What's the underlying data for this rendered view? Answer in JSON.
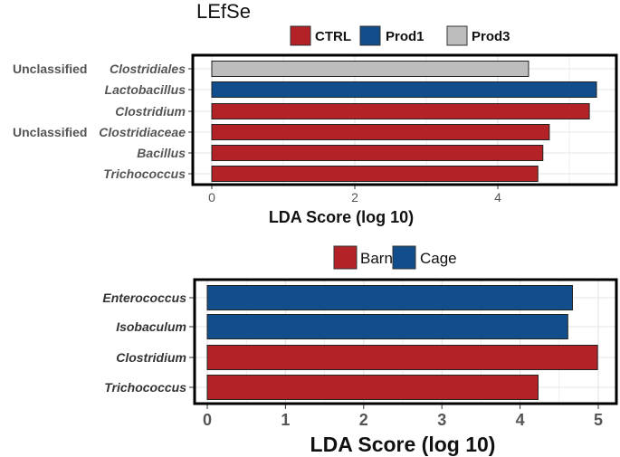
{
  "colors": {
    "CTRL": "#b22226",
    "Prod1": "#124e8c",
    "Prod3": "#bdbdbd",
    "Barn": "#b22226",
    "Cage": "#124e8c"
  },
  "chart_data": [
    {
      "type": "bar",
      "orientation": "horizontal",
      "title": "LEfSe",
      "legend_position": "top",
      "legend": [
        "CTRL",
        "Prod1",
        "Prod3"
      ],
      "xlabel": "LDA Score (log 10)",
      "xlim": [
        0,
        5.4
      ],
      "xticks": [
        "0",
        "2",
        "4"
      ],
      "grid": true,
      "bars": [
        {
          "prefix": "Unclassified",
          "label": "Clostridiales",
          "value": 4.43,
          "group": "Prod3"
        },
        {
          "prefix": "",
          "label": "Lactobacillus",
          "value": 5.38,
          "group": "Prod1"
        },
        {
          "prefix": "",
          "label": "Clostridium",
          "value": 5.28,
          "group": "CTRL"
        },
        {
          "prefix": "Unclassified",
          "label": "Clostridiaceae",
          "value": 4.72,
          "group": "CTRL"
        },
        {
          "prefix": "",
          "label": "Bacillus",
          "value": 4.63,
          "group": "CTRL"
        },
        {
          "prefix": "",
          "label": "Trichococcus",
          "value": 4.56,
          "group": "CTRL"
        }
      ]
    },
    {
      "type": "bar",
      "orientation": "horizontal",
      "legend_position": "top",
      "legend": [
        "Barn",
        "Cage"
      ],
      "xlabel": "LDA Score (log 10)",
      "xlim": [
        0,
        5.0
      ],
      "xticks": [
        "0",
        "1",
        "2",
        "3",
        "4",
        "5"
      ],
      "grid": true,
      "bars": [
        {
          "label": "Enterococcus",
          "value": 4.67,
          "group": "Cage"
        },
        {
          "label": "Isobaculum",
          "value": 4.61,
          "group": "Cage"
        },
        {
          "label": "Clostridium",
          "value": 4.99,
          "group": "Barn"
        },
        {
          "label": "Trichococcus",
          "value": 4.23,
          "group": "Barn"
        }
      ]
    }
  ]
}
